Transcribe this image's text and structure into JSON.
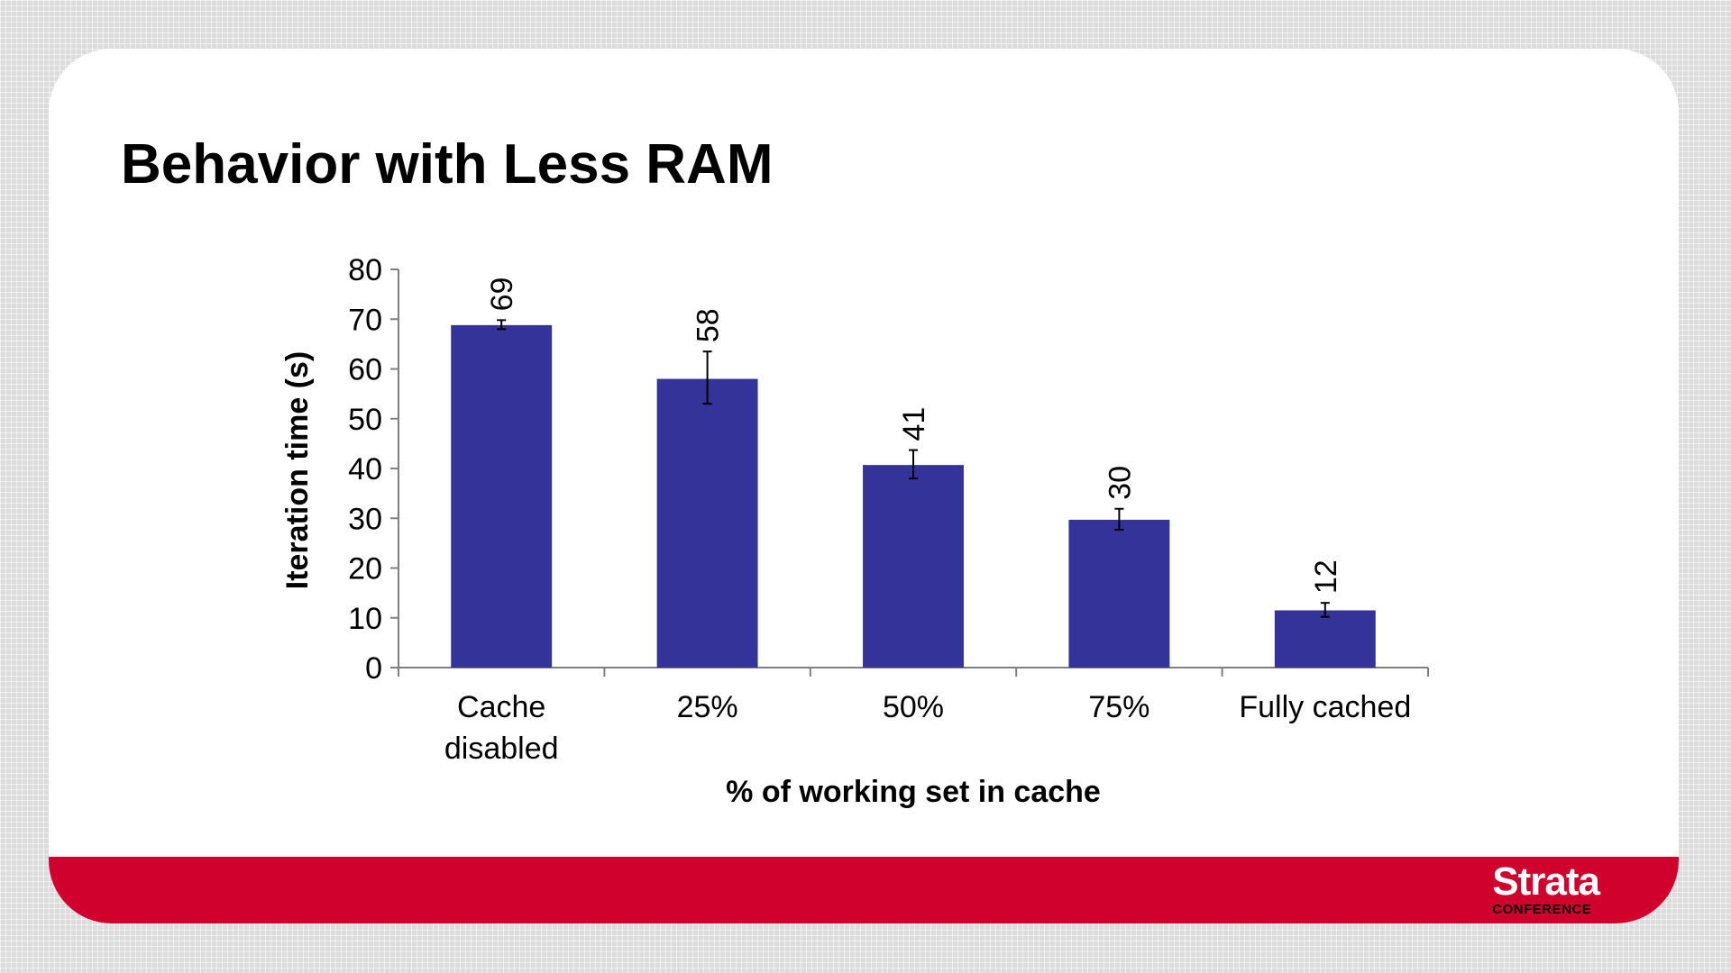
{
  "slide": {
    "title": "Behavior with Less RAM",
    "logo_main": "Strata",
    "logo_sub": "CONFERENCE"
  },
  "colors": {
    "bar": "#333399",
    "footer": "#d0022d"
  },
  "chart_data": {
    "type": "bar",
    "categories": [
      [
        "Cache",
        "disabled"
      ],
      [
        "25%"
      ],
      [
        "50%"
      ],
      [
        "75%"
      ],
      [
        "Fully cached"
      ]
    ],
    "values": [
      68.8,
      58,
      40.7,
      29.7,
      11.5
    ],
    "data_labels": [
      "69",
      "58",
      "41",
      "30",
      "12"
    ],
    "error_bars": [
      [
        68,
        69.8
      ],
      [
        53,
        63.5
      ],
      [
        38,
        43.7
      ],
      [
        27.7,
        31.9
      ],
      [
        10.2,
        13
      ]
    ],
    "xlabel": "% of working set in cache",
    "ylabel": "Iteration time (s)",
    "ylim": [
      0,
      80
    ],
    "yticks": [
      "0",
      "10",
      "20",
      "30",
      "40",
      "50",
      "60",
      "70",
      "80"
    ],
    "grid": false,
    "legend": "none"
  }
}
